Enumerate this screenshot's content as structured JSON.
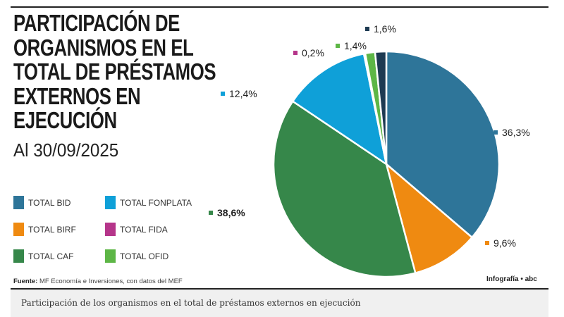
{
  "chart_data": {
    "type": "pie",
    "title": "PARTICIPACIÓN DE ORGANISMOS EN EL TOTAL DE PRÉSTAMOS EXTERNOS EN EJECUCIÓN",
    "subtitle": "Al 30/09/2025",
    "legend_placement": "bottom-left",
    "slices": [
      {
        "name": "TOTAL BID",
        "value": 36.3,
        "label": "36,3%",
        "color": "#2e7599"
      },
      {
        "name": "TOTAL BIRF",
        "value": 9.6,
        "label": "9,6%",
        "color": "#ef8a11"
      },
      {
        "name": "TOTAL CAF",
        "value": 38.6,
        "label": "38,6%",
        "color": "#36874a"
      },
      {
        "name": "TOTAL FONPLATA",
        "value": 12.4,
        "label": "12,4%",
        "color": "#0fa0d8"
      },
      {
        "name": "TOTAL FIDA",
        "value": 0.2,
        "label": "0,2%",
        "color": "#b5358a"
      },
      {
        "name": "TOTAL OFID",
        "value": 1.4,
        "label": "1,4%",
        "color": "#5db646"
      },
      {
        "value": 1.6,
        "label": "1,6%",
        "color": "#1d3a52"
      }
    ]
  },
  "legend": [
    "TOTAL BID",
    "TOTAL FONPLATA",
    "TOTAL BIRF",
    "TOTAL FIDA",
    "TOTAL CAF",
    "TOTAL OFID"
  ],
  "source": {
    "label": "Fuente:",
    "text": " MF Economía e Inversiones, con datos del MEF"
  },
  "credit": "Infografía • abc",
  "caption": "Participación de los organismos en el total de préstamos externos en ejecución"
}
